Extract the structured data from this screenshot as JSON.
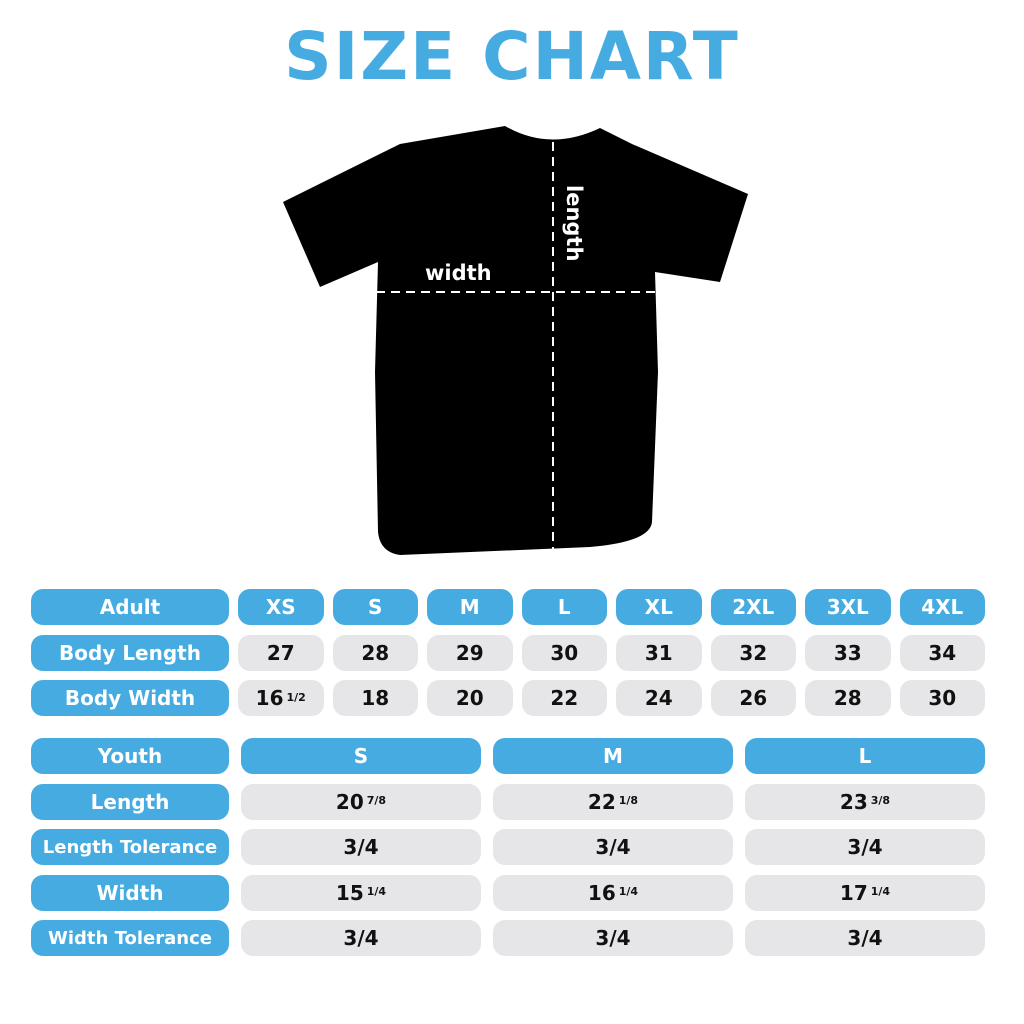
{
  "title": "SIZE CHART",
  "diagram": {
    "width_label": "width",
    "length_label": "length",
    "shirt_color": "#000000"
  },
  "colors": {
    "accent": "#46abe1",
    "cell": "#e6e6e8"
  },
  "adult": {
    "header": "Adult",
    "sizes": [
      "XS",
      "S",
      "M",
      "L",
      "XL",
      "2XL",
      "3XL",
      "4XL"
    ],
    "rows": [
      {
        "label": "Body Length",
        "values": [
          {
            "w": "27",
            "f": ""
          },
          {
            "w": "28",
            "f": ""
          },
          {
            "w": "29",
            "f": ""
          },
          {
            "w": "30",
            "f": ""
          },
          {
            "w": "31",
            "f": ""
          },
          {
            "w": "32",
            "f": ""
          },
          {
            "w": "33",
            "f": ""
          },
          {
            "w": "34",
            "f": ""
          }
        ]
      },
      {
        "label": "Body Width",
        "values": [
          {
            "w": "16",
            "f": "1/2"
          },
          {
            "w": "18",
            "f": ""
          },
          {
            "w": "20",
            "f": ""
          },
          {
            "w": "22",
            "f": ""
          },
          {
            "w": "24",
            "f": ""
          },
          {
            "w": "26",
            "f": ""
          },
          {
            "w": "28",
            "f": ""
          },
          {
            "w": "30",
            "f": ""
          }
        ]
      }
    ]
  },
  "youth": {
    "header": "Youth",
    "sizes": [
      "S",
      "M",
      "L"
    ],
    "rows": [
      {
        "label": "Length",
        "values": [
          {
            "w": "20",
            "f": "7/8"
          },
          {
            "w": "22",
            "f": "1/8"
          },
          {
            "w": "23",
            "f": "3/8"
          }
        ]
      },
      {
        "label": "Length Tolerance",
        "values": [
          {
            "w": "3/4",
            "f": ""
          },
          {
            "w": "3/4",
            "f": ""
          },
          {
            "w": "3/4",
            "f": ""
          }
        ]
      },
      {
        "label": "Width",
        "values": [
          {
            "w": "15",
            "f": "1/4"
          },
          {
            "w": "16",
            "f": "1/4"
          },
          {
            "w": "17",
            "f": "1/4"
          }
        ]
      },
      {
        "label": "Width Tolerance",
        "values": [
          {
            "w": "3/4",
            "f": ""
          },
          {
            "w": "3/4",
            "f": ""
          },
          {
            "w": "3/4",
            "f": ""
          }
        ]
      }
    ]
  }
}
